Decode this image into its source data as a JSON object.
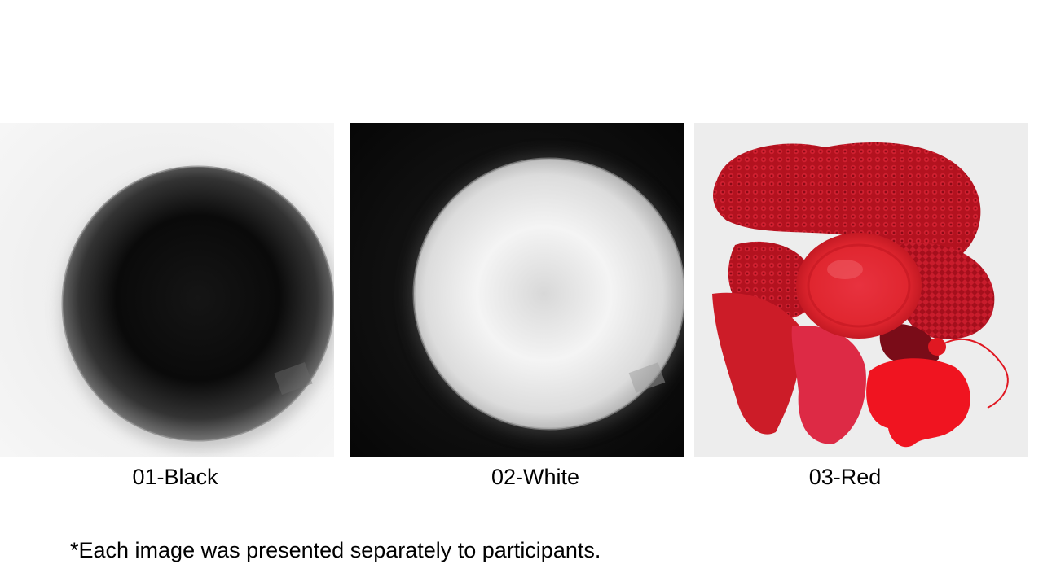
{
  "panels": [
    {
      "caption": "01-Black"
    },
    {
      "caption": "02-White"
    },
    {
      "caption": "03-Red"
    }
  ],
  "footnote": "*Each image was presented separately to participants.",
  "colors": {
    "background": "#ffffff",
    "text": "#000000",
    "black_object": "#050505",
    "white_object": "#f2f2f2",
    "red_object": "#d41f2a",
    "red_background": "#eeeeee"
  }
}
